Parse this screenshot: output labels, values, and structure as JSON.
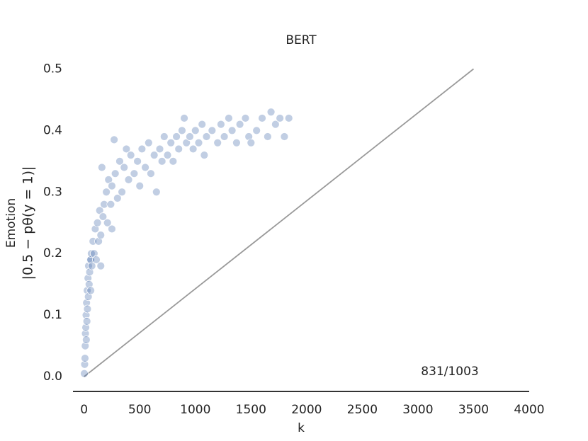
{
  "chart_data": {
    "type": "scatter",
    "title": "BERT",
    "x_label": "k",
    "y_label": [
      "Emotion",
      "|0.5 − pθ(y = 1)|"
    ],
    "annotation": "831/1003",
    "color": "#4c72b0",
    "xlim": [
      -100,
      4000
    ],
    "ylim": [
      -0.024,
      0.52
    ],
    "xticks": [
      0,
      500,
      1000,
      1500,
      2000,
      2500,
      3000,
      3500,
      4000
    ],
    "yticks": [
      {
        "value": 0,
        "label": "0.0"
      },
      0.1,
      0.2,
      0.3,
      0.4,
      0.5
    ],
    "grid": false,
    "reference_line": {
      "x": [
        0,
        3500
      ],
      "y": [
        0,
        0.5
      ],
      "color": "#999999"
    },
    "x": [
      2,
      5,
      8,
      10,
      12,
      15,
      18,
      20,
      22,
      25,
      28,
      30,
      35,
      38,
      40,
      45,
      50,
      55,
      60,
      60,
      65,
      70,
      80,
      90,
      100,
      110,
      120,
      130,
      140,
      150,
      150,
      160,
      170,
      180,
      200,
      210,
      220,
      240,
      250,
      250,
      270,
      280,
      300,
      320,
      340,
      360,
      380,
      400,
      420,
      450,
      480,
      500,
      520,
      550,
      580,
      600,
      630,
      650,
      680,
      700,
      720,
      750,
      780,
      800,
      830,
      850,
      880,
      900,
      920,
      950,
      980,
      1000,
      1030,
      1060,
      1080,
      1100,
      1150,
      1200,
      1230,
      1260,
      1300,
      1330,
      1370,
      1400,
      1450,
      1480,
      1500,
      1550,
      1600,
      1650,
      1680,
      1720,
      1760,
      1800,
      1840
    ],
    "y": [
      0.005,
      0.02,
      0.03,
      0.05,
      0.07,
      0.08,
      0.1,
      0.06,
      0.12,
      0.09,
      0.14,
      0.11,
      0.16,
      0.13,
      0.18,
      0.15,
      0.17,
      0.19,
      0.14,
      0.19,
      0.2,
      0.18,
      0.22,
      0.2,
      0.24,
      0.19,
      0.25,
      0.22,
      0.27,
      0.23,
      0.18,
      0.34,
      0.26,
      0.28,
      0.3,
      0.25,
      0.32,
      0.28,
      0.31,
      0.24,
      0.385,
      0.33,
      0.29,
      0.35,
      0.3,
      0.34,
      0.37,
      0.32,
      0.36,
      0.33,
      0.35,
      0.31,
      0.37,
      0.34,
      0.38,
      0.33,
      0.36,
      0.3,
      0.37,
      0.35,
      0.39,
      0.36,
      0.38,
      0.35,
      0.39,
      0.37,
      0.4,
      0.42,
      0.38,
      0.39,
      0.37,
      0.4,
      0.38,
      0.41,
      0.36,
      0.39,
      0.4,
      0.38,
      0.41,
      0.39,
      0.42,
      0.4,
      0.38,
      0.41,
      0.42,
      0.39,
      0.38,
      0.4,
      0.42,
      0.39,
      0.43,
      0.41,
      0.42,
      0.39,
      0.42
    ]
  }
}
